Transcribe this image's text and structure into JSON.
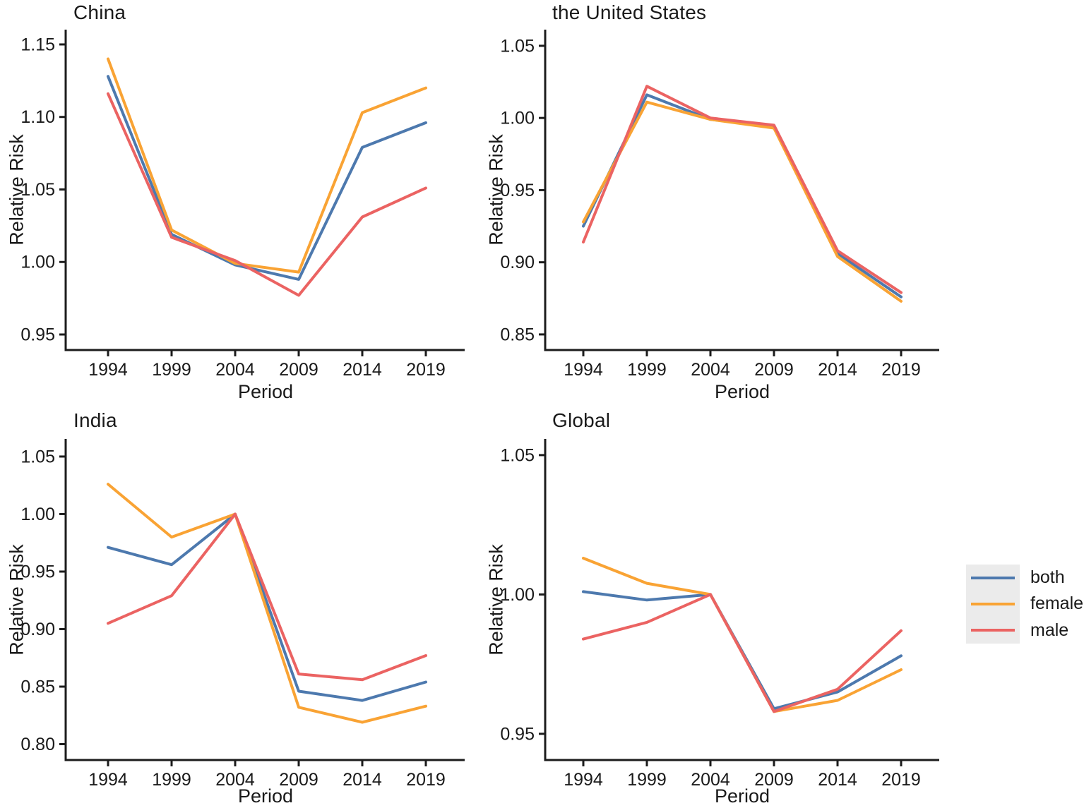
{
  "figure": {
    "background": "#FFFFFF",
    "text_color": "#1A1A1A",
    "axis_color": "#1C1C1C"
  },
  "palette": {
    "both": "#4D79AE",
    "female": "#F9A334",
    "male": "#EB6362"
  },
  "legend": {
    "background": "#EBEBEB",
    "position": "right",
    "entries": [
      {
        "label": "both",
        "color": "#4D79AE"
      },
      {
        "label": "female",
        "color": "#F9A334"
      },
      {
        "label": "male",
        "color": "#EB6362"
      }
    ]
  },
  "chart_data": [
    {
      "type": "line",
      "title": "China",
      "xlabel": "Period",
      "ylabel": "Relative Risk",
      "grid": false,
      "x": [
        1994,
        1999,
        2004,
        2009,
        2014,
        2019
      ],
      "xtick_labels": [
        "1994",
        "1999",
        "2004",
        "2009",
        "2014",
        "2019"
      ],
      "ytick_values": [
        0.95,
        1.0,
        1.05,
        1.1,
        1.15
      ],
      "ytick_labels": [
        "0.95",
        "1.00",
        "1.05",
        "1.10",
        "1.15"
      ],
      "ylim": [
        0.9393,
        1.1602
      ],
      "series": [
        {
          "name": "both",
          "values": [
            1.128,
            1.019,
            0.998,
            0.988,
            1.079,
            1.096
          ]
        },
        {
          "name": "female",
          "values": [
            1.14,
            1.022,
            0.999,
            0.993,
            1.103,
            1.12
          ]
        },
        {
          "name": "male",
          "values": [
            1.116,
            1.017,
            1.001,
            0.977,
            1.031,
            1.051
          ]
        }
      ]
    },
    {
      "type": "line",
      "title": "the United States",
      "xlabel": "Period",
      "ylabel": "Relative Risk",
      "grid": false,
      "x": [
        1994,
        1999,
        2004,
        2009,
        2014,
        2019
      ],
      "xtick_labels": [
        "1994",
        "1999",
        "2004",
        "2009",
        "2014",
        "2019"
      ],
      "ytick_values": [
        0.85,
        0.9,
        0.95,
        1.0,
        1.05
      ],
      "ytick_labels": [
        "0.85",
        "0.90",
        "0.95",
        "1.00",
        "1.05"
      ],
      "ylim": [
        0.8392,
        1.0612
      ],
      "series": [
        {
          "name": "both",
          "values": [
            0.925,
            1.016,
            0.999,
            0.994,
            0.906,
            0.876
          ]
        },
        {
          "name": "female",
          "values": [
            0.928,
            1.011,
            0.999,
            0.993,
            0.904,
            0.873
          ]
        },
        {
          "name": "male",
          "values": [
            0.914,
            1.022,
            1.0,
            0.995,
            0.908,
            0.879
          ]
        }
      ]
    },
    {
      "type": "line",
      "title": "India",
      "xlabel": "Period",
      "ylabel": "Relative Risk",
      "grid": false,
      "x": [
        1994,
        1999,
        2004,
        2009,
        2014,
        2019
      ],
      "xtick_labels": [
        "1994",
        "1999",
        "2004",
        "2009",
        "2014",
        "2019"
      ],
      "ytick_values": [
        0.8,
        0.85,
        0.9,
        0.95,
        1.0,
        1.05
      ],
      "ytick_labels": [
        "0.80",
        "0.85",
        "0.90",
        "0.95",
        "1.00",
        "1.05"
      ],
      "ylim": [
        0.7862,
        1.0653
      ],
      "series": [
        {
          "name": "both",
          "values": [
            0.971,
            0.956,
            1.0,
            0.846,
            0.838,
            0.854
          ]
        },
        {
          "name": "female",
          "values": [
            1.026,
            0.98,
            1.0,
            0.832,
            0.819,
            0.833
          ]
        },
        {
          "name": "male",
          "values": [
            0.905,
            0.929,
            1.0,
            0.861,
            0.856,
            0.877
          ]
        }
      ]
    },
    {
      "type": "line",
      "title": "Global",
      "xlabel": "Period",
      "ylabel": "Relative Risk",
      "grid": false,
      "x": [
        1994,
        1999,
        2004,
        2009,
        2014,
        2019
      ],
      "xtick_labels": [
        "1994",
        "1999",
        "2004",
        "2009",
        "2014",
        "2019"
      ],
      "ytick_values": [
        0.95,
        1.0,
        1.05
      ],
      "ytick_labels": [
        "0.95",
        "1.00",
        "1.05"
      ],
      "ylim": [
        0.9406,
        1.0558
      ],
      "series": [
        {
          "name": "both",
          "values": [
            1.001,
            0.998,
            1.0,
            0.959,
            0.965,
            0.978
          ]
        },
        {
          "name": "female",
          "values": [
            1.013,
            1.004,
            1.0,
            0.958,
            0.962,
            0.973
          ]
        },
        {
          "name": "male",
          "values": [
            0.984,
            0.99,
            1.0,
            0.958,
            0.966,
            0.987
          ]
        }
      ]
    }
  ]
}
